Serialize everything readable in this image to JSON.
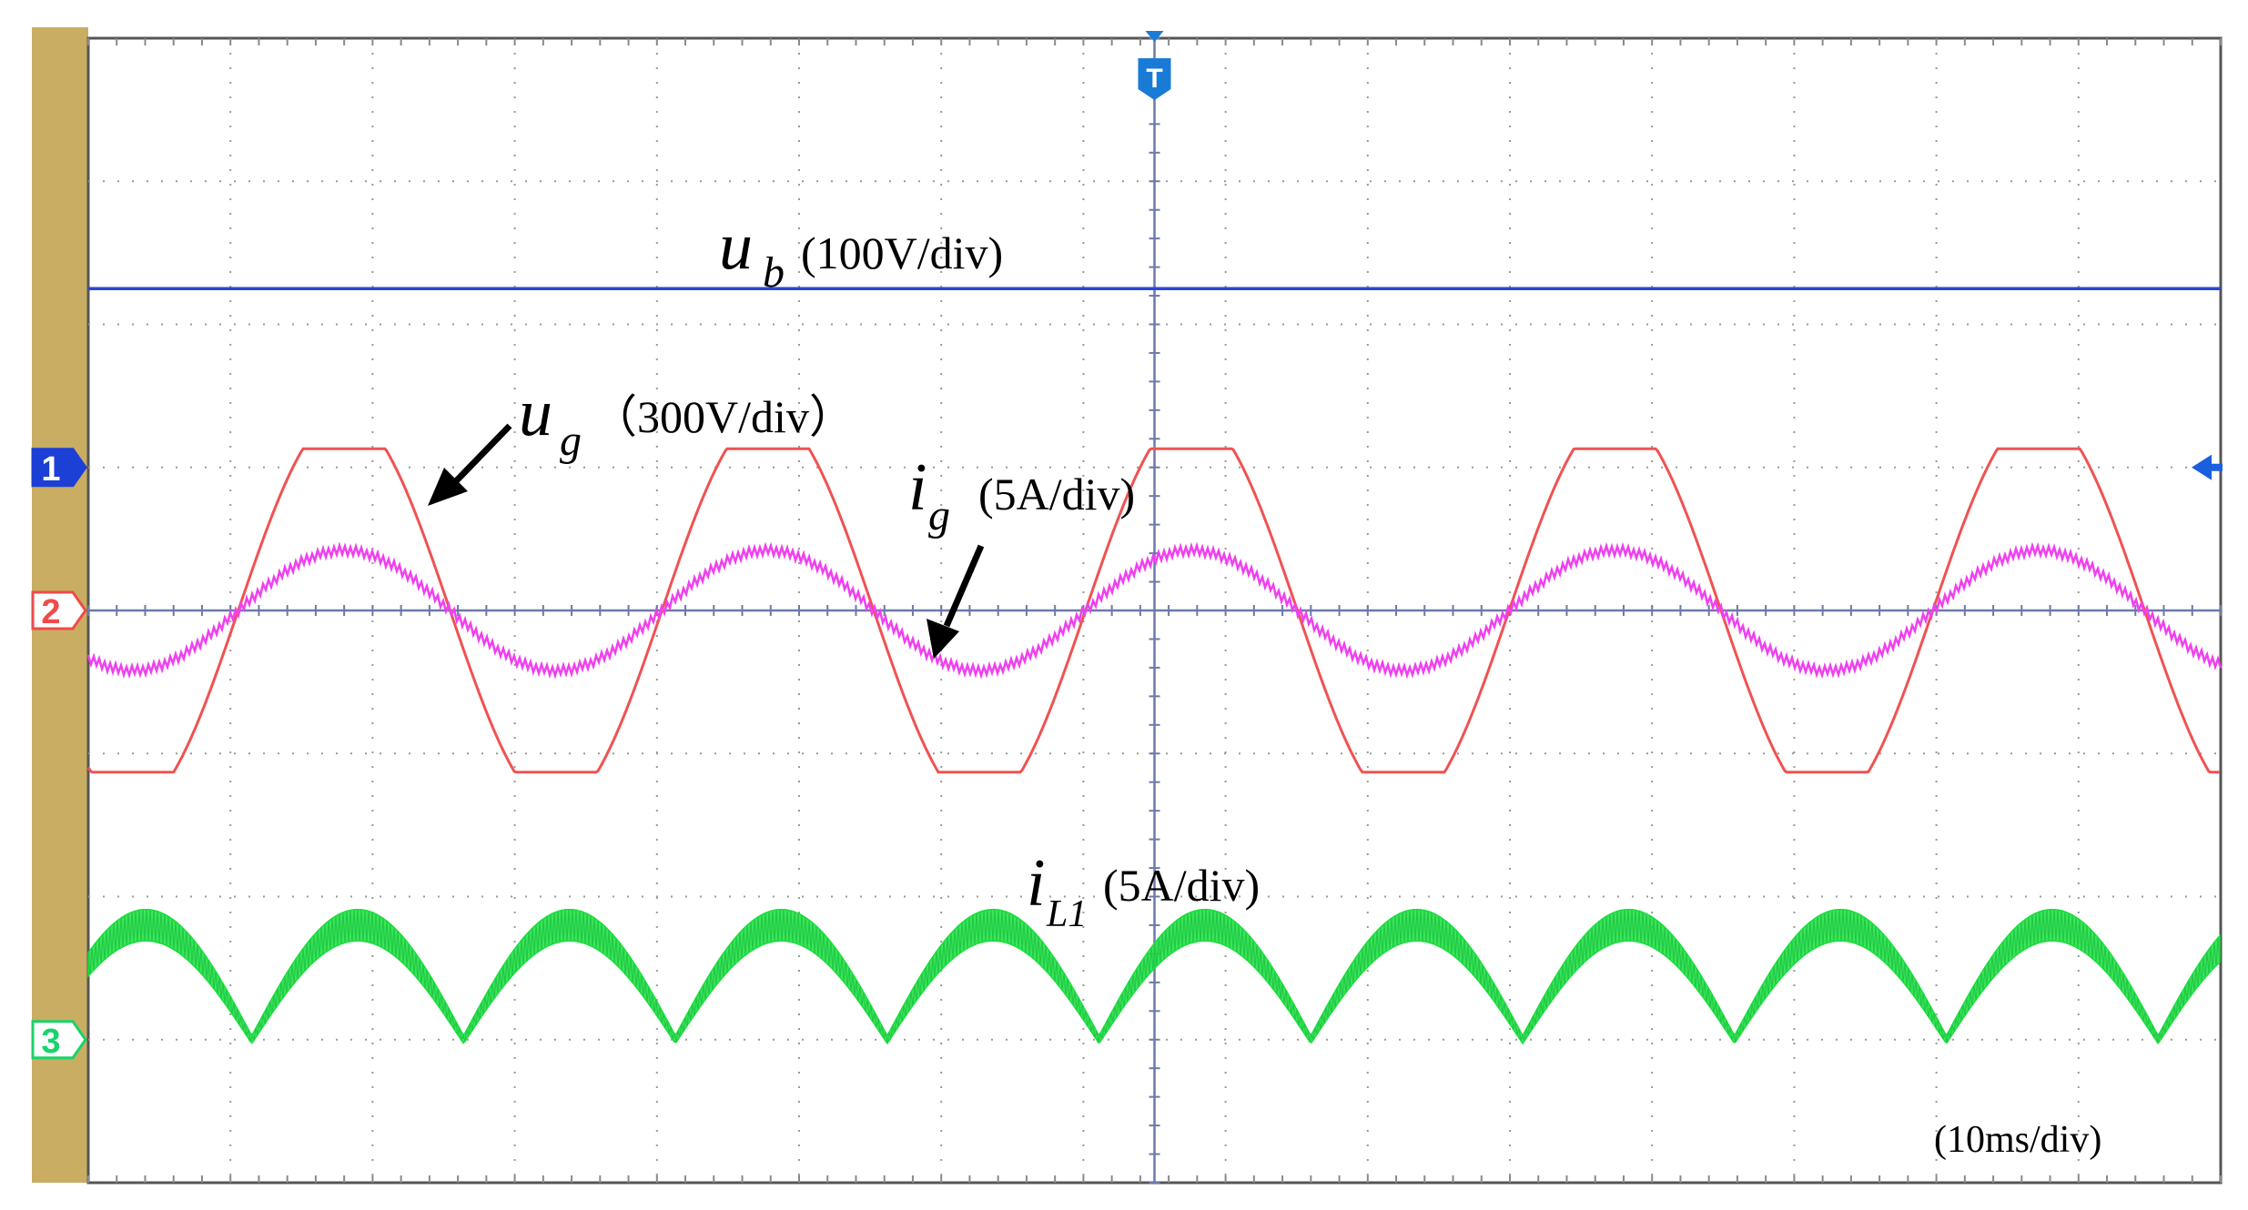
{
  "chart_data": {
    "type": "line",
    "title": "",
    "xlabel": "",
    "ylabel": "",
    "timebase": "(10ms/div)",
    "grid": true,
    "x_divisions": 15,
    "y_divisions": 8,
    "trigger_marker": "T",
    "channels": [
      {
        "marker": "1",
        "color": "#1c3fd6",
        "ground_div_from_top": 3.0
      },
      {
        "marker": "2",
        "color": "#f04a4a",
        "ground_div_from_top": 4.0
      },
      {
        "marker": "3",
        "color": "#19d36b",
        "ground_div_from_top": 7.0
      }
    ],
    "series": [
      {
        "symbol": "u",
        "subscript": "b",
        "scale": "(100V/div)",
        "color": "#2a46d9",
        "waveform": "dc",
        "level_div_from_top": 1.75
      },
      {
        "symbol": "u",
        "subscript": "g",
        "scale": "（300V/div）",
        "color": "#f05252",
        "waveform": "clipped-sine",
        "center_div_from_top": 4.0,
        "amplitude_div": 1.13,
        "period_div": 2.98,
        "first_peak_div": 1.8
      },
      {
        "symbol": "i",
        "subscript": "g",
        "scale": "(5A/div)",
        "color": "#f040f0",
        "waveform": "sine",
        "center_div_from_top": 4.0,
        "amplitude_div": 0.42,
        "period_div": 2.98,
        "first_peak_div": 1.8
      },
      {
        "symbol": "i",
        "subscript": "L1",
        "scale": "(5A/div)",
        "color": "#18e23a",
        "waveform": "rectified-sine-ripple",
        "valley_div_from_top": 7.0,
        "peak_div_from_top": 6.2,
        "ripple_div": 0.22,
        "half_period_div": 1.49,
        "first_valley_div": 1.15
      }
    ]
  }
}
